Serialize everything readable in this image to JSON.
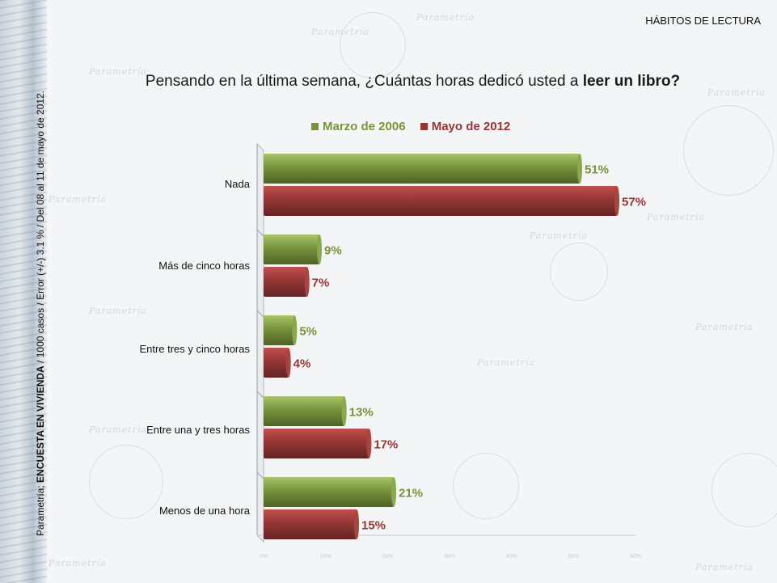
{
  "header": {
    "section_title": "HÁBITOS DE LECTURA",
    "question_prefix": "Pensando en la última semana, ¿Cuántas horas dedicó usted a ",
    "question_bold": "leer un libro?"
  },
  "sidebar": {
    "source_prefix": "Parametría; ",
    "source_bold": "ENCUESTA EN VIVIENDA",
    "source_rest": " / 1000 casos / Error (+/-) 3.1 % / Del 08 al 11 de mayo de 2012."
  },
  "watermark": {
    "brand": "Parametría"
  },
  "colors": {
    "green": "#77933c",
    "red": "#953735"
  },
  "chart_data": {
    "type": "bar",
    "orientation": "horizontal",
    "categories": [
      "Nada",
      "Más de cinco horas",
      "Entre tres y cinco horas",
      "Entre una y tres horas",
      "Menos de una hora"
    ],
    "series": [
      {
        "name": "Marzo de 2006",
        "values": [
          51,
          9,
          5,
          13,
          21
        ],
        "labels": [
          "51%",
          "9%",
          "5%",
          "13%",
          "21%"
        ]
      },
      {
        "name": "Mayo de 2012",
        "values": [
          57,
          7,
          4,
          17,
          15
        ],
        "labels": [
          "57%",
          "7%",
          "4%",
          "17%",
          "15%"
        ]
      }
    ],
    "xlim": [
      0,
      60
    ],
    "xticks": [
      "0%",
      "10%",
      "20%",
      "30%",
      "40%",
      "50%",
      "60%"
    ],
    "legend": "top"
  }
}
